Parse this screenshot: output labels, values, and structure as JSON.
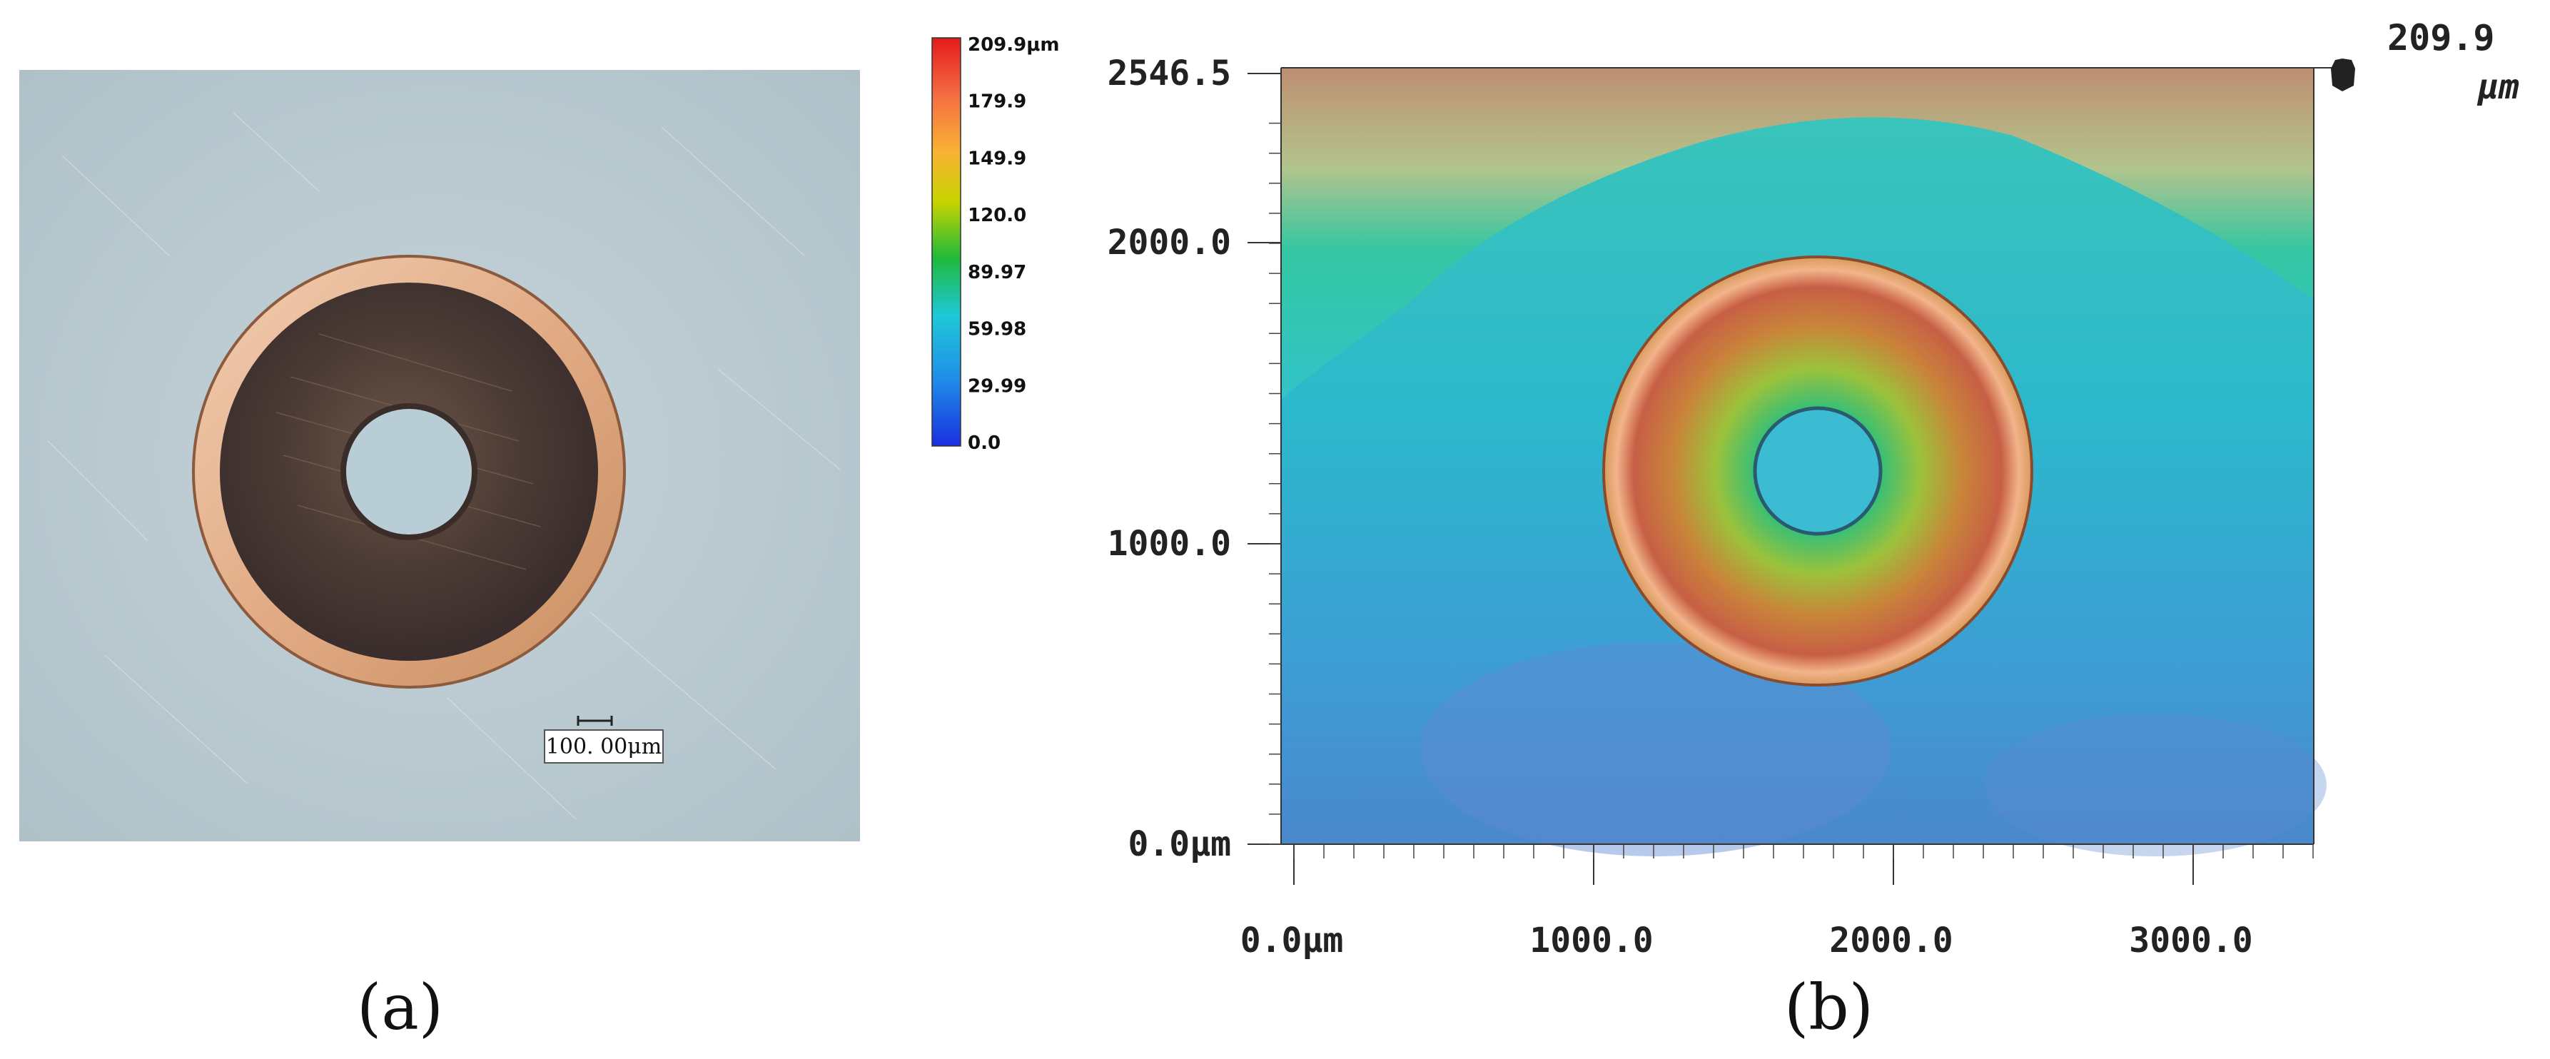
{
  "panel_a": {
    "scale_bar_label": "100. 00μm",
    "caption": "(a)",
    "colors": {
      "background": "#b9c9d0",
      "ring": "#e8b89a",
      "disk": "#4a3a34",
      "hole": "#b8cdd6"
    }
  },
  "colorbar": {
    "ticks": [
      "209.9μm",
      "179.9",
      "149.9",
      "120.0",
      "89.97",
      "59.98",
      "29.99",
      "0.0"
    ],
    "colors": [
      "#d7191c",
      "#f46d43",
      "#f9b233",
      "#c8d400",
      "#1fba3a",
      "#1ec8d8",
      "#1f8ce8",
      "#1a2fe0"
    ]
  },
  "panel_b": {
    "caption": "(b)",
    "y_ticks": [
      "2546.5",
      "2000.0",
      "1000.0",
      "0.0μm"
    ],
    "x_ticks": [
      "0.0μm",
      "1000.0",
      "2000.0",
      "3000.0"
    ],
    "z_max_value": "209.9",
    "z_max_unit": "μm"
  }
}
